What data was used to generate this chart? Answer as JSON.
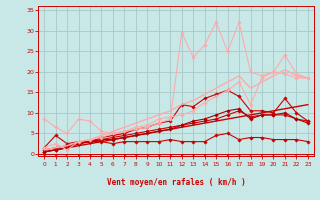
{
  "bg_color": "#c8e8e8",
  "grid_color": "#a8c8c8",
  "xlabel": "Vent moyen/en rafales ( km/h )",
  "xlabel_color": "#cc0000",
  "tick_color": "#cc0000",
  "xlim": [
    -0.5,
    23.5
  ],
  "ylim": [
    -0.5,
    36
  ],
  "xticks": [
    0,
    1,
    2,
    3,
    4,
    5,
    6,
    7,
    8,
    9,
    10,
    11,
    12,
    13,
    14,
    15,
    16,
    17,
    18,
    19,
    20,
    21,
    22,
    23
  ],
  "yticks": [
    0,
    5,
    10,
    15,
    20,
    25,
    30,
    35
  ],
  "lines": [
    {
      "x": [
        0,
        1,
        2,
        3,
        4,
        5,
        6,
        7,
        8,
        9,
        10,
        11,
        12,
        13,
        14,
        15,
        16,
        17,
        18,
        19,
        20,
        21,
        22,
        23
      ],
      "y": [
        1.5,
        4.5,
        2.5,
        3.0,
        3.0,
        3.0,
        2.5,
        3.0,
        3.0,
        3.0,
        3.0,
        3.5,
        3.0,
        3.0,
        3.0,
        4.5,
        5.0,
        3.5,
        4.0,
        4.0,
        3.5,
        3.5,
        3.5,
        3.0
      ],
      "color": "#cc0000",
      "lw": 0.8,
      "marker": "D",
      "ms": 1.8
    },
    {
      "x": [
        0,
        1,
        2,
        3,
        4,
        5,
        6,
        7,
        8,
        9,
        10,
        11,
        12,
        13,
        14,
        15,
        16,
        17,
        18,
        19,
        20,
        21,
        22,
        23
      ],
      "y": [
        0.5,
        1.0,
        1.5,
        2.0,
        2.5,
        3.0,
        3.5,
        4.0,
        4.5,
        5.0,
        5.5,
        6.0,
        6.5,
        7.0,
        7.5,
        8.0,
        8.5,
        9.0,
        9.5,
        10.0,
        10.5,
        11.0,
        11.5,
        12.0
      ],
      "color": "#cc0000",
      "lw": 1.0,
      "marker": null,
      "ms": 0
    },
    {
      "x": [
        0,
        1,
        2,
        3,
        4,
        5,
        6,
        7,
        8,
        9,
        10,
        11,
        12,
        13,
        14,
        15,
        16,
        17,
        18,
        19,
        20,
        21,
        22,
        23
      ],
      "y": [
        0.5,
        1.0,
        1.5,
        2.5,
        3.0,
        3.5,
        4.0,
        4.5,
        5.0,
        5.5,
        6.0,
        6.5,
        7.0,
        7.5,
        8.0,
        8.5,
        9.5,
        10.5,
        9.0,
        9.5,
        9.5,
        9.5,
        8.5,
        8.0
      ],
      "color": "#cc0000",
      "lw": 0.8,
      "marker": "D",
      "ms": 1.8
    },
    {
      "x": [
        0,
        1,
        2,
        3,
        4,
        5,
        6,
        7,
        8,
        9,
        10,
        11,
        12,
        13,
        14,
        15,
        16,
        17,
        18,
        19,
        20,
        21,
        22,
        23
      ],
      "y": [
        0.5,
        1.0,
        1.5,
        2.5,
        3.0,
        3.5,
        3.5,
        4.0,
        4.5,
        5.0,
        5.5,
        6.0,
        7.0,
        8.0,
        8.5,
        9.5,
        10.5,
        11.0,
        8.5,
        9.5,
        9.5,
        10.0,
        8.5,
        7.5
      ],
      "color": "#aa0000",
      "lw": 0.8,
      "marker": "D",
      "ms": 1.8
    },
    {
      "x": [
        0,
        1,
        2,
        3,
        4,
        5,
        6,
        7,
        8,
        9,
        10,
        11,
        12,
        13,
        14,
        15,
        16,
        17,
        18,
        19,
        20,
        21,
        22,
        23
      ],
      "y": [
        1.0,
        1.5,
        2.0,
        2.5,
        3.0,
        4.0,
        4.5,
        5.0,
        6.0,
        6.5,
        7.5,
        8.0,
        12.0,
        11.5,
        13.5,
        14.5,
        15.5,
        14.0,
        10.5,
        10.5,
        10.0,
        13.5,
        10.0,
        8.0
      ],
      "color": "#cc0000",
      "lw": 0.8,
      "marker": "D",
      "ms": 1.8
    },
    {
      "x": [
        0,
        1,
        2,
        3,
        4,
        5,
        6,
        7,
        8,
        9,
        10,
        11,
        12,
        13,
        14,
        15,
        16,
        17,
        18,
        19,
        20,
        21,
        22,
        23
      ],
      "y": [
        8.5,
        6.5,
        5.0,
        8.5,
        8.0,
        5.5,
        5.0,
        5.5,
        6.5,
        7.0,
        8.5,
        9.0,
        9.5,
        10.5,
        12.5,
        14.0,
        15.5,
        17.5,
        12.0,
        18.5,
        20.0,
        24.0,
        19.5,
        18.5
      ],
      "color": "#ffaaaa",
      "lw": 0.8,
      "marker": "D",
      "ms": 1.8
    },
    {
      "x": [
        0,
        1,
        2,
        3,
        4,
        5,
        6,
        7,
        8,
        9,
        10,
        11,
        12,
        13,
        14,
        15,
        16,
        17,
        18,
        19,
        20,
        21,
        22,
        23
      ],
      "y": [
        1.5,
        2.5,
        1.0,
        3.0,
        3.5,
        4.0,
        5.0,
        5.5,
        6.0,
        6.5,
        7.5,
        8.5,
        29.5,
        23.5,
        26.5,
        32.0,
        25.0,
        32.0,
        20.0,
        19.0,
        20.0,
        19.5,
        18.5,
        18.5
      ],
      "color": "#ffaaaa",
      "lw": 0.8,
      "marker": "D",
      "ms": 1.8
    },
    {
      "x": [
        0,
        1,
        2,
        3,
        4,
        5,
        6,
        7,
        8,
        9,
        10,
        11,
        12,
        13,
        14,
        15,
        16,
        17,
        18,
        19,
        20,
        21,
        22,
        23
      ],
      "y": [
        1.0,
        1.5,
        2.0,
        3.0,
        3.5,
        4.5,
        5.5,
        6.5,
        7.5,
        8.5,
        9.5,
        10.5,
        12.0,
        13.0,
        14.5,
        16.0,
        17.5,
        19.0,
        16.0,
        17.5,
        19.0,
        20.5,
        19.0,
        18.5
      ],
      "color": "#ffaaaa",
      "lw": 1.0,
      "marker": null,
      "ms": 0
    }
  ],
  "arrow_angles_deg": [
    200,
    200,
    260,
    200,
    200,
    200,
    200,
    200,
    200,
    200,
    200,
    200,
    210,
    210,
    210,
    210,
    215,
    215,
    220,
    220,
    220,
    225,
    230,
    230
  ]
}
